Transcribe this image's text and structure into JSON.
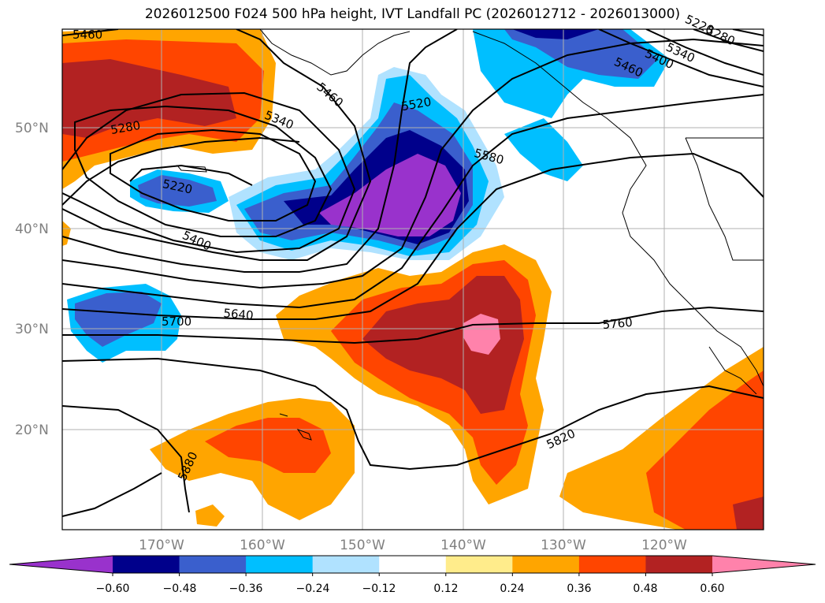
{
  "title": "2026012500 F024 500 hPa height, IVT Landfall PC (2026012712 - 2026013000)",
  "axes": {
    "lon_ticks": [
      "170°W",
      "160°W",
      "150°W",
      "140°W",
      "130°W",
      "120°W"
    ],
    "lat_ticks": [
      "50°N",
      "40°N",
      "30°N",
      "20°N"
    ],
    "grid": true
  },
  "contour_labels": [
    "5460",
    "5220",
    "5280",
    "5340",
    "5400",
    "5460",
    "5520",
    "5460",
    "5280",
    "5340",
    "5580",
    "5220",
    "5400",
    "5640",
    "5700",
    "5760",
    "5820",
    "5880"
  ],
  "colorbar": {
    "ticks": [
      "−0.60",
      "−0.48",
      "−0.36",
      "−0.24",
      "−0.12",
      "0.12",
      "0.24",
      "0.36",
      "0.48",
      "0.60"
    ],
    "colors": [
      "#9932cc",
      "#00008b",
      "#3a5fcd",
      "#00bfff",
      "#b0e2ff",
      "#ffffff",
      "#ffec8b",
      "#ffa500",
      "#ff4500",
      "#b22222",
      "#ff82ab"
    ],
    "extend": "both"
  }
}
